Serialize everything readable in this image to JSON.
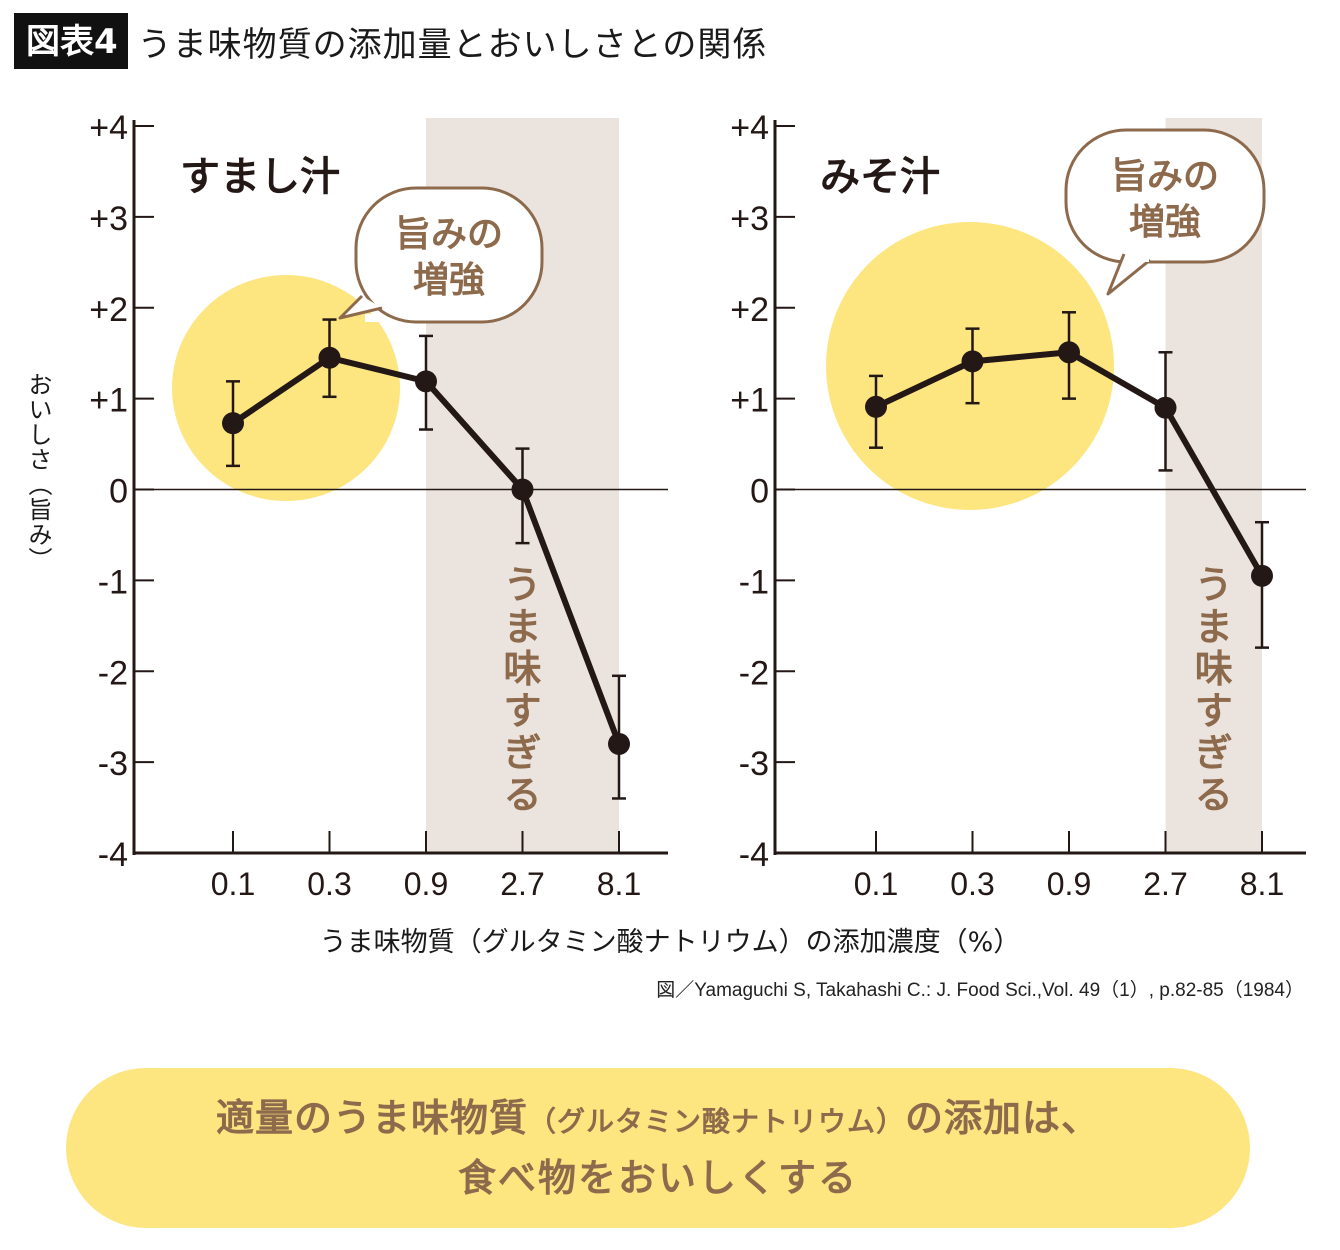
{
  "header": {
    "badge": "図表4",
    "title": "うま味物質の添加量とおいしさとの関係"
  },
  "colors": {
    "line": "#231815",
    "highlight_circle": "#fde580",
    "shaded_band": "#ebe4de",
    "annotation_text": "#8d6a4c",
    "bubble_stroke": "#8d6a4c"
  },
  "chart_data": [
    {
      "type": "line",
      "title": "すまし汁",
      "categories": [
        "0.1",
        "0.3",
        "0.9",
        "2.7",
        "8.1"
      ],
      "series": [
        {
          "name": "おいしさ（旨み）",
          "values": [
            0.73,
            1.45,
            1.19,
            0.0,
            -2.8
          ],
          "error_upper": [
            1.19,
            1.87,
            1.69,
            0.45,
            -2.05
          ],
          "error_lower": [
            0.26,
            1.02,
            0.66,
            -0.59,
            -3.4
          ]
        }
      ],
      "ylim": [
        -4,
        4
      ],
      "yticks": [
        "+4",
        "+3",
        "+2",
        "+1",
        "0",
        "-1",
        "-2",
        "-3",
        "-4"
      ],
      "ytick_values": [
        4,
        3,
        2,
        1,
        0,
        -1,
        -2,
        -3,
        -4
      ],
      "ylabel": "おいしさ（旨み）",
      "xlabel": "うま味物質（グルタミン酸ナトリウム）の添加濃度（%）",
      "shaded_region": {
        "from": "0.9",
        "to": "8.1",
        "label": "うま味すぎる"
      },
      "highlight_region": {
        "categories": [
          "0.1",
          "0.3"
        ],
        "label": "旨みの増強"
      },
      "callout": {
        "line1": "旨みの",
        "line2": "増強"
      },
      "zero_line": true
    },
    {
      "type": "line",
      "title": "みそ汁",
      "categories": [
        "0.1",
        "0.3",
        "0.9",
        "2.7",
        "8.1"
      ],
      "series": [
        {
          "name": "おいしさ（旨み）",
          "values": [
            0.91,
            1.41,
            1.51,
            0.9,
            -0.95
          ],
          "error_upper": [
            1.25,
            1.77,
            1.95,
            1.51,
            -0.36
          ],
          "error_lower": [
            0.46,
            0.95,
            1.0,
            0.21,
            -1.74
          ]
        }
      ],
      "ylim": [
        -4,
        4
      ],
      "yticks": [
        "+4",
        "+3",
        "+2",
        "+1",
        "0",
        "-1",
        "-2",
        "-3",
        "-4"
      ],
      "ytick_values": [
        4,
        3,
        2,
        1,
        0,
        -1,
        -2,
        -3,
        -4
      ],
      "ylabel": "おいしさ（旨み）",
      "xlabel": "うま味物質（グルタミン酸ナトリウム）の添加濃度（%）",
      "shaded_region": {
        "from": "2.7",
        "to": "8.1",
        "label": "うま味すぎる"
      },
      "highlight_region": {
        "categories": [
          "0.1",
          "0.3",
          "0.9"
        ],
        "label": "旨みの増強"
      },
      "callout": {
        "line1": "旨みの",
        "line2": "増強"
      },
      "zero_line": true
    }
  ],
  "axis": {
    "ylabel": "おいしさ（旨み）",
    "xlabel": "うま味物質（グルタミン酸ナトリウム）の添加濃度（%）"
  },
  "source": "図／Yamaguchi S, Takahashi C.: J. Food Sci.,Vol. 49（1）, p.82-85（1984）",
  "summary": {
    "line1_a": "適量のうま味物質",
    "line1_small": "（グルタミン酸ナトリウム）",
    "line1_b": "の添加は、",
    "line2": "食べ物をおいしくする"
  }
}
